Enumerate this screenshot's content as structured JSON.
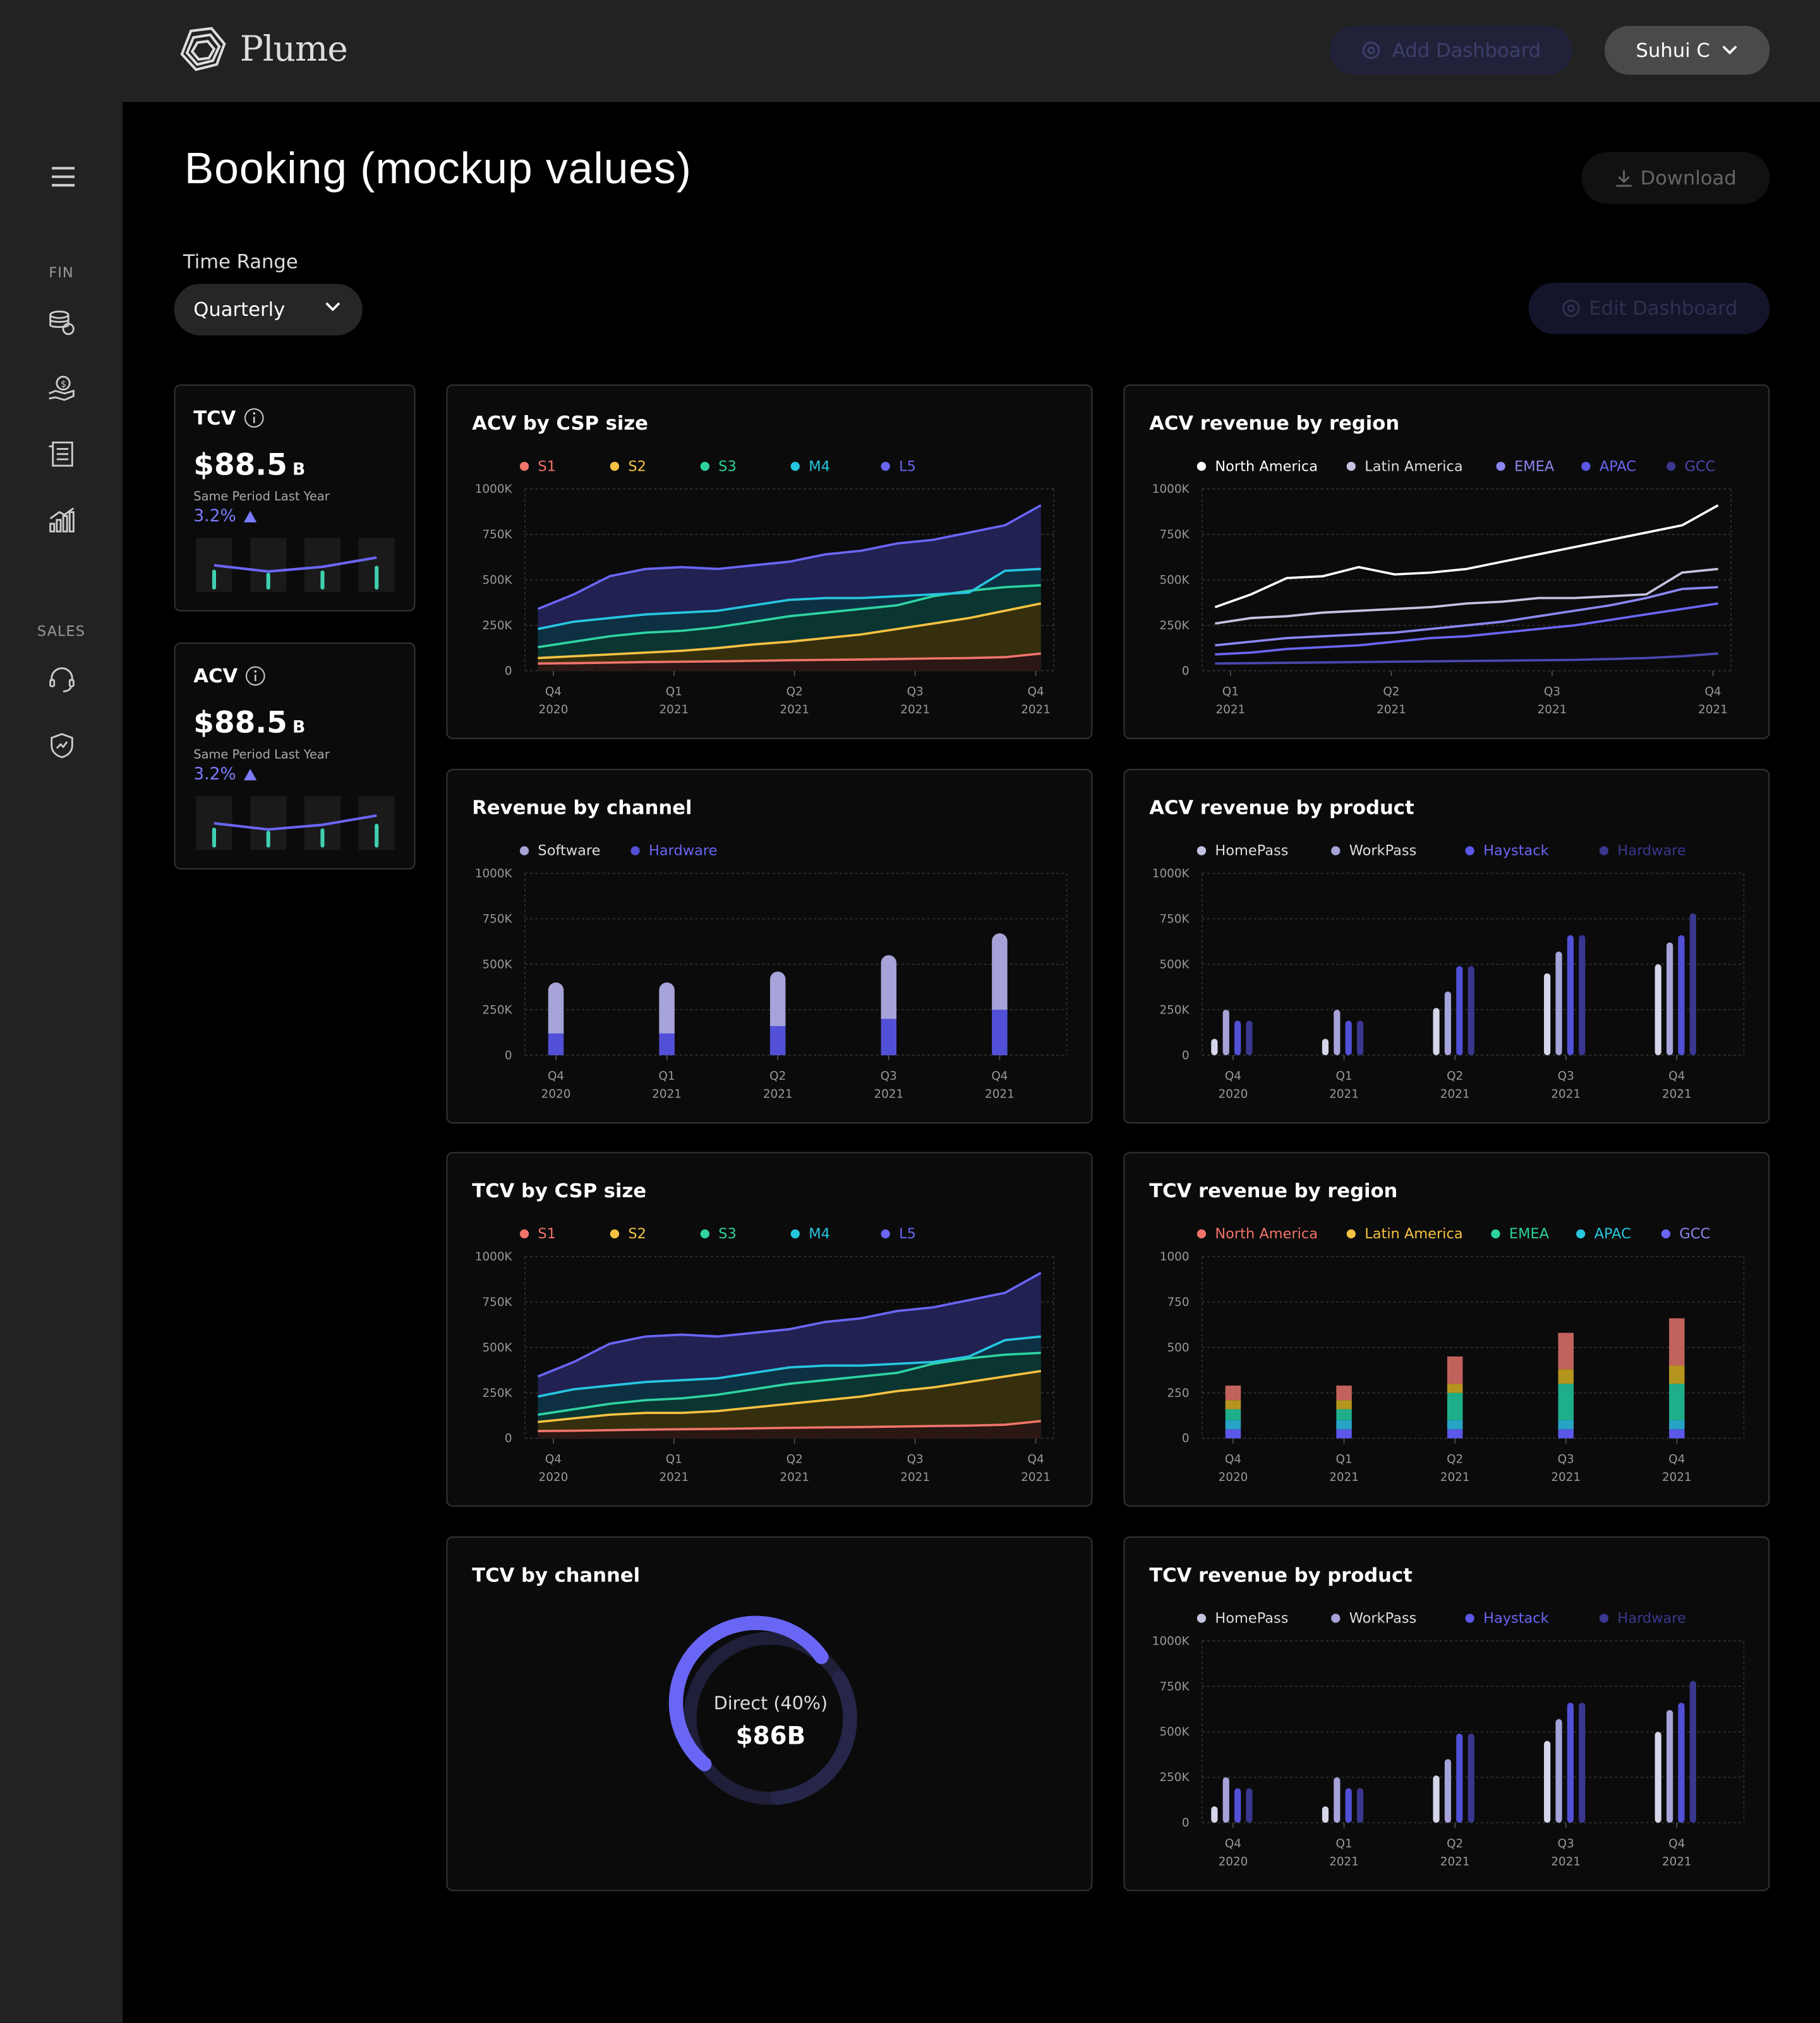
{
  "app": {
    "brand": "Plume",
    "add_dashboard": "Add Dashboard",
    "user_name": "Suhui C"
  },
  "sidebar": {
    "section_fin": "FIN",
    "section_sales": "SALES"
  },
  "page": {
    "title": "Booking (mockup values)",
    "download": "Download",
    "time_range_label": "Time Range",
    "time_range_value": "Quarterly",
    "edit_dashboard": "Edit Dashboard"
  },
  "colors": {
    "s1": "#f0746b",
    "s2": "#f5c242",
    "s3": "#2fd3a2",
    "m4": "#27c6e0",
    "l5": "#6a66f5",
    "white": "#ffffff",
    "light": "#c4c4e0",
    "mid": "#8c87f0",
    "blue": "#5b57e8",
    "dark": "#3a3790",
    "software": "#a6a3d9",
    "hardware": "#5250d6"
  },
  "kpis": [
    {
      "label": "TCV",
      "value": "$88.5",
      "unit": "B",
      "sub": "Same Period Last Year",
      "pct": "3.2%",
      "spark": [
        0.45,
        0.25,
        0.4,
        0.7
      ]
    },
    {
      "label": "ACV",
      "value": "$88.5",
      "unit": "B",
      "sub": "Same Period Last Year",
      "pct": "3.2%",
      "spark": [
        0.45,
        0.25,
        0.4,
        0.7
      ]
    }
  ],
  "chart_data": [
    {
      "type": "area",
      "title": "ACV by CSP size",
      "legend": [
        "S1",
        "S2",
        "S3",
        "M4",
        "L5"
      ],
      "yticks": [
        "1000K",
        "750K",
        "500K",
        "250K",
        "0"
      ],
      "xticks": [
        [
          "Q4",
          "2020"
        ],
        [
          "Q1",
          "2021"
        ],
        [
          "Q2",
          "2021"
        ],
        [
          "Q3",
          "2021"
        ],
        [
          "Q4",
          "2021"
        ]
      ],
      "ylim": [
        0,
        1000000
      ],
      "series": [
        {
          "name": "S1",
          "values": [
            40000,
            42000,
            45000,
            48000,
            50000,
            52000,
            55000,
            58000,
            60000,
            62000,
            65000,
            68000,
            70000,
            75000,
            95000
          ]
        },
        {
          "name": "S2",
          "values": [
            70000,
            80000,
            90000,
            100000,
            110000,
            125000,
            145000,
            160000,
            180000,
            200000,
            230000,
            260000,
            290000,
            330000,
            370000
          ]
        },
        {
          "name": "S3",
          "values": [
            130000,
            160000,
            190000,
            210000,
            220000,
            240000,
            270000,
            300000,
            320000,
            340000,
            360000,
            410000,
            440000,
            460000,
            470000
          ]
        },
        {
          "name": "M4",
          "values": [
            230000,
            270000,
            290000,
            310000,
            320000,
            330000,
            360000,
            390000,
            400000,
            400000,
            410000,
            420000,
            430000,
            550000,
            560000
          ]
        },
        {
          "name": "L5",
          "values": [
            340000,
            420000,
            520000,
            560000,
            570000,
            560000,
            580000,
            600000,
            640000,
            660000,
            700000,
            720000,
            760000,
            800000,
            910000
          ]
        }
      ]
    },
    {
      "type": "line",
      "title": "ACV revenue by region",
      "legend": [
        "North America",
        "Latin America",
        "EMEA",
        "APAC",
        "GCC"
      ],
      "yticks": [
        "1000K",
        "750K",
        "500K",
        "250K",
        "0"
      ],
      "xticks": [
        [
          "Q1",
          "2021"
        ],
        [
          "Q2",
          "2021"
        ],
        [
          "Q3",
          "2021"
        ],
        [
          "Q4",
          "2021"
        ]
      ],
      "ylim": [
        0,
        1000000
      ],
      "series": [
        {
          "name": "North America",
          "values": [
            350000,
            420000,
            510000,
            520000,
            570000,
            530000,
            540000,
            560000,
            600000,
            640000,
            680000,
            720000,
            760000,
            800000,
            910000
          ]
        },
        {
          "name": "Latin America",
          "values": [
            260000,
            290000,
            300000,
            320000,
            330000,
            340000,
            350000,
            370000,
            380000,
            400000,
            400000,
            410000,
            420000,
            540000,
            560000
          ]
        },
        {
          "name": "EMEA",
          "values": [
            140000,
            160000,
            180000,
            190000,
            200000,
            210000,
            230000,
            250000,
            270000,
            300000,
            330000,
            360000,
            400000,
            450000,
            460000
          ]
        },
        {
          "name": "APAC",
          "values": [
            90000,
            100000,
            120000,
            130000,
            140000,
            160000,
            180000,
            190000,
            210000,
            230000,
            250000,
            280000,
            310000,
            340000,
            370000
          ]
        },
        {
          "name": "GCC",
          "values": [
            40000,
            42000,
            44000,
            46000,
            48000,
            50000,
            52000,
            54000,
            56000,
            58000,
            60000,
            65000,
            70000,
            80000,
            95000
          ]
        }
      ]
    },
    {
      "type": "bar",
      "title": "Revenue by channel",
      "legend": [
        "Software",
        "Hardware"
      ],
      "yticks": [
        "1000K",
        "750K",
        "500K",
        "250K",
        "0"
      ],
      "xticks": [
        [
          "Q4",
          "2020"
        ],
        [
          "Q1",
          "2021"
        ],
        [
          "Q2",
          "2021"
        ],
        [
          "Q3",
          "2021"
        ],
        [
          "Q4",
          "2021"
        ]
      ],
      "ylim": [
        0,
        1000000
      ],
      "series": [
        {
          "name": "Software",
          "values": [
            280000,
            280000,
            300000,
            350000,
            420000
          ]
        },
        {
          "name": "Hardware",
          "values": [
            120000,
            120000,
            160000,
            200000,
            250000
          ]
        }
      ]
    },
    {
      "type": "bar",
      "title": "ACV revenue by product",
      "legend": [
        "HomePass",
        "WorkPass",
        "Haystack",
        "Hardware"
      ],
      "yticks": [
        "1000K",
        "750K",
        "500K",
        "250K",
        "0"
      ],
      "xticks": [
        [
          "Q4",
          "2020"
        ],
        [
          "Q1",
          "2021"
        ],
        [
          "Q2",
          "2021"
        ],
        [
          "Q3",
          "2021"
        ],
        [
          "Q4",
          "2021"
        ]
      ],
      "ylim": [
        0,
        1000000
      ],
      "series": [
        {
          "name": "HomePass",
          "values": [
            90000,
            90000,
            260000,
            450000,
            500000
          ]
        },
        {
          "name": "WorkPass",
          "values": [
            250000,
            250000,
            350000,
            570000,
            620000
          ]
        },
        {
          "name": "Haystack",
          "values": [
            190000,
            190000,
            490000,
            660000,
            660000
          ]
        },
        {
          "name": "Hardware",
          "values": [
            190000,
            190000,
            490000,
            660000,
            780000
          ]
        }
      ]
    },
    {
      "type": "area",
      "title": "TCV by CSP size",
      "legend": [
        "S1",
        "S2",
        "S3",
        "M4",
        "L5"
      ],
      "yticks": [
        "1000K",
        "750K",
        "500K",
        "250K",
        "0"
      ],
      "xticks": [
        [
          "Q4",
          "2020"
        ],
        [
          "Q1",
          "2021"
        ],
        [
          "Q2",
          "2021"
        ],
        [
          "Q3",
          "2021"
        ],
        [
          "Q4",
          "2021"
        ]
      ],
      "ylim": [
        0,
        1000000
      ],
      "series": [
        {
          "name": "S1",
          "values": [
            40000,
            42000,
            45000,
            48000,
            50000,
            52000,
            55000,
            58000,
            60000,
            62000,
            65000,
            68000,
            70000,
            75000,
            95000
          ]
        },
        {
          "name": "S2",
          "values": [
            90000,
            110000,
            130000,
            140000,
            140000,
            150000,
            170000,
            190000,
            210000,
            230000,
            260000,
            280000,
            310000,
            340000,
            370000
          ]
        },
        {
          "name": "S3",
          "values": [
            130000,
            160000,
            190000,
            210000,
            220000,
            240000,
            270000,
            300000,
            320000,
            340000,
            360000,
            410000,
            440000,
            460000,
            470000
          ]
        },
        {
          "name": "M4",
          "values": [
            230000,
            270000,
            290000,
            310000,
            320000,
            330000,
            360000,
            390000,
            400000,
            400000,
            410000,
            420000,
            450000,
            540000,
            560000
          ]
        },
        {
          "name": "L5",
          "values": [
            340000,
            420000,
            520000,
            560000,
            570000,
            560000,
            580000,
            600000,
            640000,
            660000,
            700000,
            720000,
            760000,
            800000,
            910000
          ]
        }
      ]
    },
    {
      "type": "stacked-bar",
      "title": "TCV revenue by region",
      "legend": [
        "North America",
        "Latin America",
        "EMEA",
        "APAC",
        "GCC"
      ],
      "yticks": [
        "1000",
        "750",
        "500",
        "250",
        "0"
      ],
      "xticks": [
        [
          "Q4",
          "2020"
        ],
        [
          "Q1",
          "2021"
        ],
        [
          "Q2",
          "2021"
        ],
        [
          "Q3",
          "2021"
        ],
        [
          "Q4",
          "2021"
        ]
      ],
      "ylim": [
        0,
        1000
      ],
      "series": [
        {
          "name": "GCC",
          "values": [
            50,
            50,
            50,
            50,
            50
          ]
        },
        {
          "name": "APAC",
          "values": [
            50,
            50,
            50,
            50,
            50
          ]
        },
        {
          "name": "EMEA",
          "values": [
            60,
            60,
            150,
            200,
            200
          ]
        },
        {
          "name": "Latin America",
          "values": [
            50,
            50,
            50,
            80,
            100
          ]
        },
        {
          "name": "North America",
          "values": [
            80,
            80,
            150,
            200,
            260
          ]
        }
      ]
    },
    {
      "type": "pie",
      "title": "TCV by channel",
      "center_label": "Direct (40%)",
      "center_value": "$86B",
      "slices": [
        {
          "name": "Direct",
          "value": 40
        },
        {
          "name": "Other",
          "value": 60
        }
      ]
    },
    {
      "type": "bar",
      "title": "TCV revenue by product",
      "legend": [
        "HomePass",
        "WorkPass",
        "Haystack",
        "Hardware"
      ],
      "yticks": [
        "1000K",
        "750K",
        "500K",
        "250K",
        "0"
      ],
      "xticks": [
        [
          "Q4",
          "2020"
        ],
        [
          "Q1",
          "2021"
        ],
        [
          "Q2",
          "2021"
        ],
        [
          "Q3",
          "2021"
        ],
        [
          "Q4",
          "2021"
        ]
      ],
      "ylim": [
        0,
        1000000
      ],
      "series": [
        {
          "name": "HomePass",
          "values": [
            90000,
            90000,
            260000,
            450000,
            500000
          ]
        },
        {
          "name": "WorkPass",
          "values": [
            250000,
            250000,
            350000,
            570000,
            620000
          ]
        },
        {
          "name": "Haystack",
          "values": [
            190000,
            190000,
            490000,
            660000,
            660000
          ]
        },
        {
          "name": "Hardware",
          "values": [
            190000,
            190000,
            490000,
            660000,
            780000
          ]
        }
      ]
    }
  ]
}
